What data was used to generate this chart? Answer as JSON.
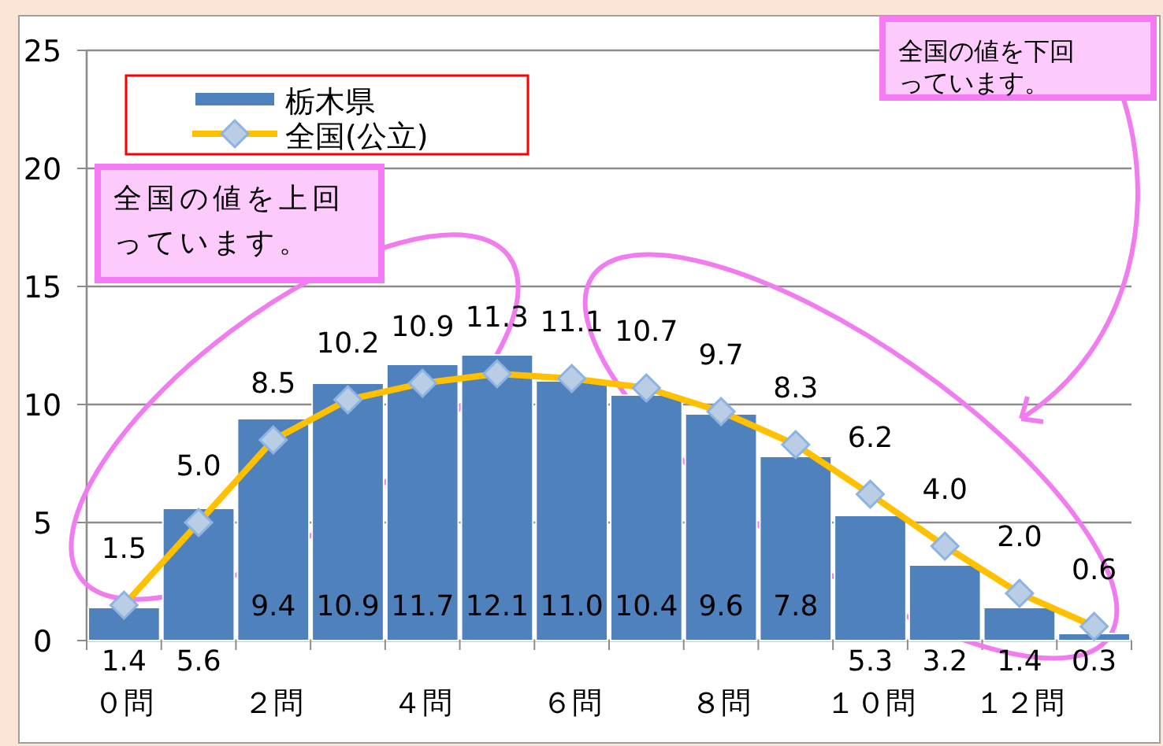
{
  "chart_data": {
    "type": "bar",
    "categories": [
      "０問",
      null,
      "２問",
      null,
      "４問",
      null,
      "６問",
      null,
      "８問",
      null,
      "１０問",
      null,
      "１２問",
      null
    ],
    "series": [
      {
        "name": "栃木県",
        "color": "#4f81bd",
        "values": [
          1.4,
          5.6,
          9.4,
          10.9,
          11.7,
          12.1,
          11.0,
          10.4,
          9.6,
          7.8,
          5.3,
          3.2,
          1.4,
          0.3
        ],
        "value_labels": [
          "1.4",
          "5.6",
          "9.4",
          "10.9",
          "11.7",
          "12.1",
          "11.0",
          "10.4",
          "9.6",
          "7.8",
          "5.3",
          "3.2",
          "1.4",
          "0.3"
        ]
      },
      {
        "name": "全国(公立)",
        "type": "line",
        "color": "#ffc000",
        "marker": "diamond",
        "values": [
          1.5,
          5.0,
          8.5,
          10.2,
          10.9,
          11.3,
          11.1,
          10.7,
          9.7,
          8.3,
          6.2,
          4.0,
          2.0,
          0.6
        ],
        "value_labels": [
          "1.5",
          "5.0",
          "8.5",
          "10.2",
          "10.9",
          "11.3",
          "11.1",
          "10.7",
          "9.7",
          "8.3",
          "6.2",
          "4.0",
          "2.0",
          "0.6"
        ]
      }
    ],
    "ylim": [
      0,
      25
    ],
    "yticks": [
      0,
      5,
      10,
      15,
      20,
      25
    ],
    "grid": "y",
    "legend": "top left",
    "annotations": [
      "全国の値を上回っています。",
      "全国の値を下回っています。"
    ]
  }
}
